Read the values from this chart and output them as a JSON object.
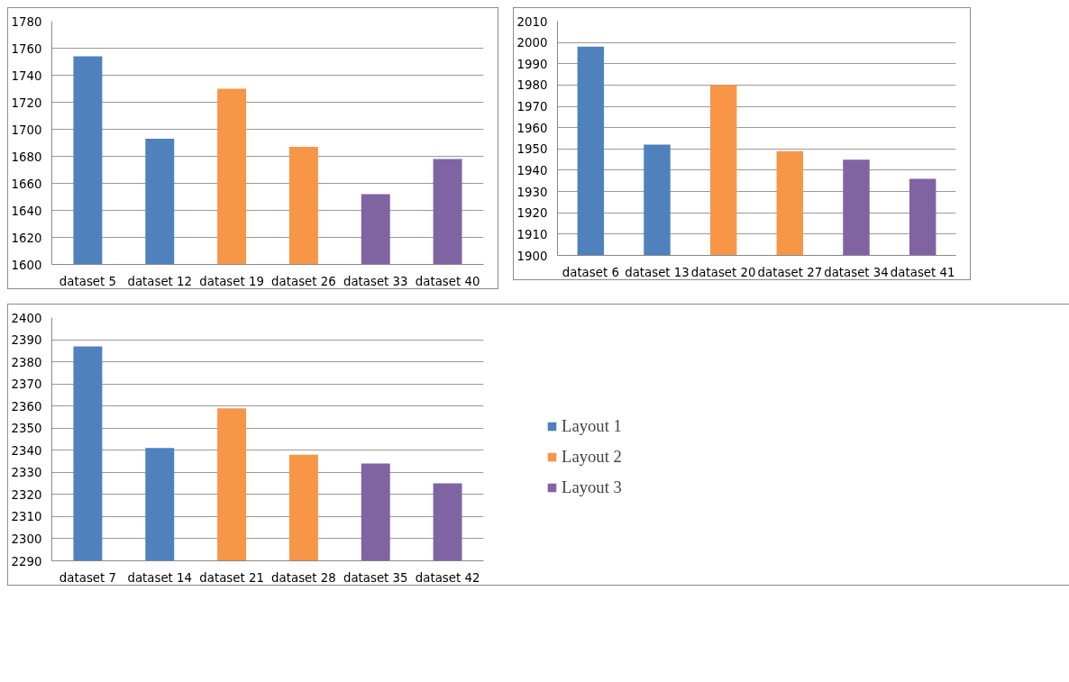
{
  "chart_data": [
    {
      "type": "bar",
      "categories": [
        "dataset 5",
        "dataset 12",
        "dataset 19",
        "dataset 26",
        "dataset 33",
        "dataset 40"
      ],
      "values": [
        1754,
        1693,
        1730,
        1687,
        1652,
        1678
      ],
      "colors": [
        "#4f81bd",
        "#4f81bd",
        "#f79646",
        "#f79646",
        "#8064a2",
        "#8064a2"
      ],
      "ylim": [
        1600,
        1780
      ],
      "yticks": [
        1600,
        1620,
        1640,
        1660,
        1680,
        1700,
        1720,
        1740,
        1760,
        1780
      ],
      "grid": "y"
    },
    {
      "type": "bar",
      "categories": [
        "dataset 6",
        "dataset 13",
        "dataset 20",
        "dataset 27",
        "dataset 34",
        "dataset 41"
      ],
      "values": [
        1998,
        1952,
        1980,
        1949,
        1945,
        1936
      ],
      "colors": [
        "#4f81bd",
        "#4f81bd",
        "#f79646",
        "#f79646",
        "#8064a2",
        "#8064a2"
      ],
      "ylim": [
        1900,
        2010
      ],
      "yticks": [
        1900,
        1910,
        1920,
        1930,
        1940,
        1950,
        1960,
        1970,
        1980,
        1990,
        2000,
        2010
      ],
      "grid": "y"
    },
    {
      "type": "bar",
      "categories": [
        "dataset 7",
        "dataset 14",
        "dataset 21",
        "dataset 28",
        "dataset 35",
        "dataset 42"
      ],
      "series": [
        {
          "name": "Layout 1",
          "color": "#4f81bd",
          "values": [
            2387,
            2341,
            null,
            null,
            null,
            null
          ]
        },
        {
          "name": "Layout 2",
          "color": "#f79646",
          "values": [
            null,
            null,
            2359,
            2338,
            null,
            null
          ]
        },
        {
          "name": "Layout 3",
          "color": "#8064a2",
          "values": [
            null,
            null,
            null,
            null,
            2334,
            2325
          ]
        }
      ],
      "ylim": [
        2290,
        2400
      ],
      "yticks": [
        2290,
        2300,
        2310,
        2320,
        2330,
        2340,
        2350,
        2360,
        2370,
        2380,
        2390,
        2400
      ],
      "grid": "y",
      "legend": "right"
    }
  ]
}
